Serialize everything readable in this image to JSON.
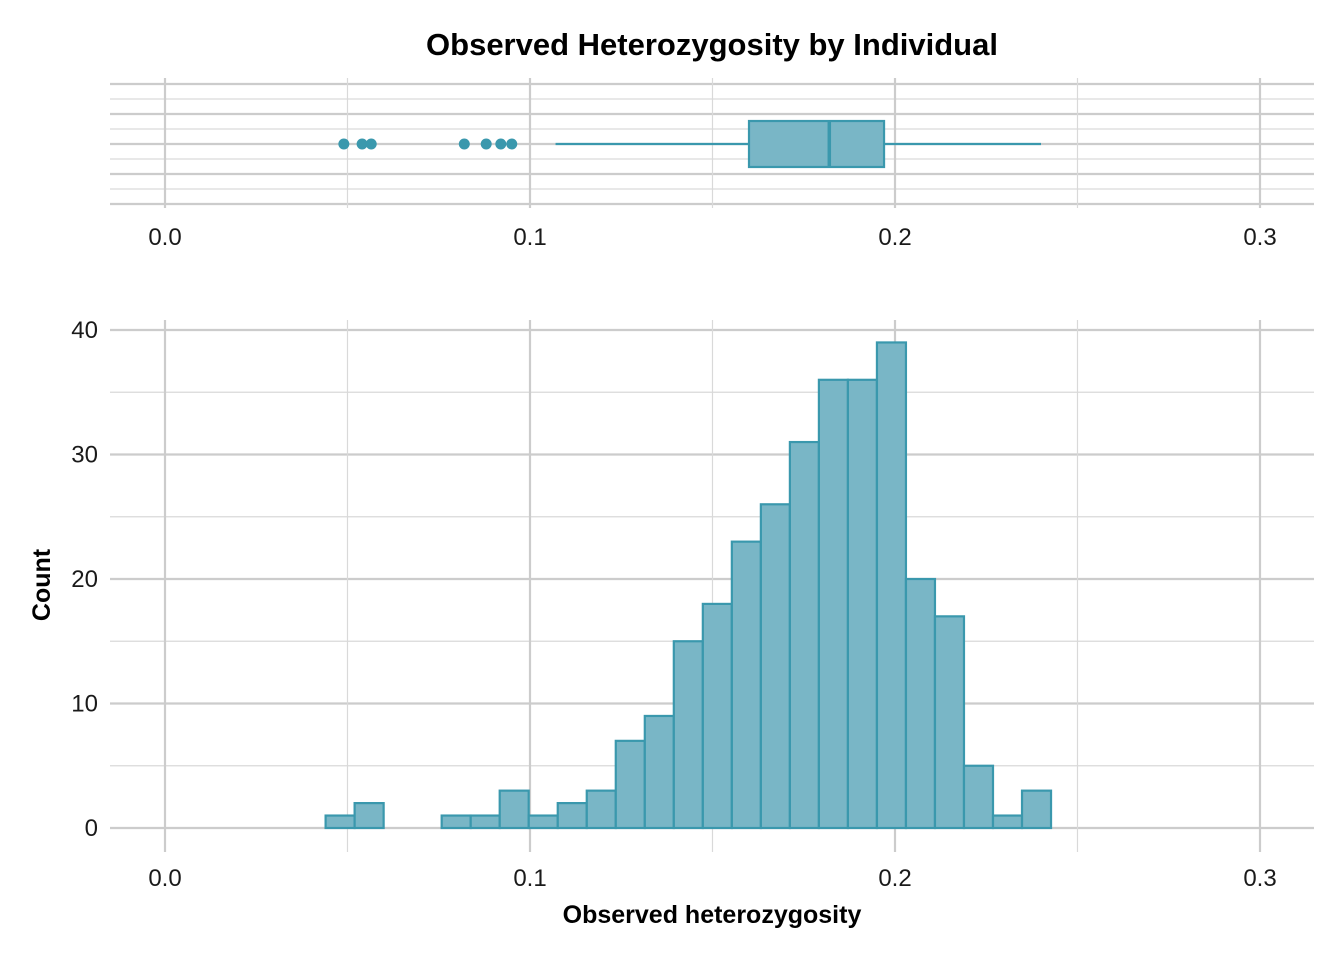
{
  "title": "Observed Heterozygosity by Individual",
  "colors": {
    "fill": "#79b6c6",
    "stroke": "#3a98ad",
    "point": "#3a98ad",
    "grid": "#cccccc"
  },
  "chart_data": [
    {
      "type": "boxplot",
      "xlim": [
        -0.015,
        0.315
      ],
      "x_ticks": [
        0.0,
        0.1,
        0.2,
        0.3
      ],
      "x_tick_labels": [
        "0.0",
        "0.1",
        "0.2",
        "0.3"
      ],
      "grid": true,
      "box": {
        "whisker_low": 0.107,
        "q1": 0.16,
        "median": 0.182,
        "q3": 0.197,
        "whisker_high": 0.24
      },
      "outliers": [
        0.049,
        0.054,
        0.0565,
        0.082,
        0.088,
        0.092,
        0.095
      ]
    },
    {
      "type": "histogram",
      "xlabel": "Observed heterozygosity",
      "ylabel": "Count",
      "xlim": [
        -0.015,
        0.315
      ],
      "ylim": [
        0,
        40
      ],
      "x_ticks": [
        0.0,
        0.1,
        0.2,
        0.3
      ],
      "x_tick_labels": [
        "0.0",
        "0.1",
        "0.2",
        "0.3"
      ],
      "y_ticks": [
        0,
        10,
        20,
        30,
        40
      ],
      "y_tick_labels": [
        "0",
        "10",
        "20",
        "30",
        "40"
      ],
      "grid": true,
      "bin_start": 0.044,
      "bin_width": 0.00795,
      "counts": [
        1,
        2,
        0,
        0,
        1,
        1,
        3,
        1,
        2,
        3,
        7,
        9,
        15,
        18,
        23,
        26,
        31,
        36,
        36,
        39,
        20,
        17,
        5,
        1,
        3
      ]
    }
  ]
}
